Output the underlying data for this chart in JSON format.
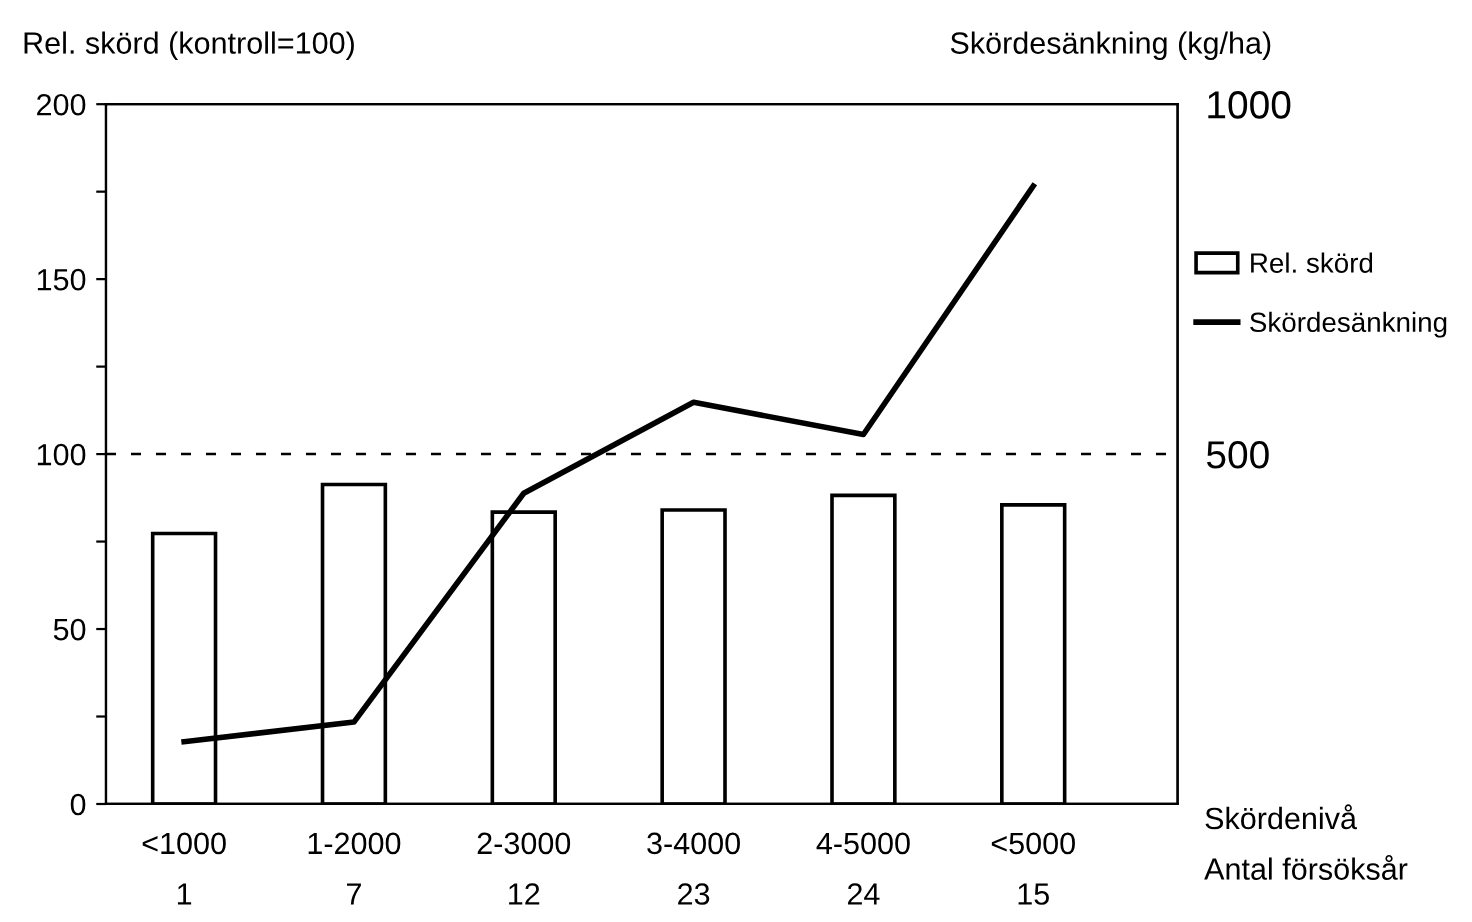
{
  "chart_data": {
    "type": "bar",
    "categories": [
      "<1000\n1",
      "1-2000\n7",
      "2-3000\n12",
      "3-4000\n23",
      "4-5000\n24",
      "<5000\n15"
    ],
    "series": [
      {
        "name": "Rel. skörd",
        "color": "#ffffff",
        "values": [
          77.3,
          91.3,
          83.4,
          84,
          88.2,
          85.5
        ]
      },
      {
        "name": "Skördesänkning",
        "type": "line",
        "axis": "y2",
        "color": "#000000",
        "values": [
          89,
          117,
          444,
          574,
          528,
          883
        ]
      }
    ],
    "ylabel": "Rel. skörd (kontroll=100)",
    "y2label": "Skördesänkning (kg/ha)",
    "xlabel": "Skördenivå\nAntal försöksår",
    "ylim": [
      0,
      200
    ],
    "yticks": [
      0,
      {
        "value": 25,
        "label": null
      },
      50,
      {
        "value": 75,
        "label": null
      },
      100,
      {
        "value": 125,
        "label": null
      },
      150,
      {
        "value": 175,
        "label": null
      },
      200
    ],
    "y2lim": [
      0,
      1000
    ],
    "y2ticks": [
      500,
      1000
    ],
    "ref_lines": [
      {
        "axis": "y",
        "value": 100,
        "line_style": "dashed",
        "color": "#000000"
      }
    ],
    "legend": "right",
    "grid": false,
    "marker": "none",
    "line_style": "solid"
  }
}
